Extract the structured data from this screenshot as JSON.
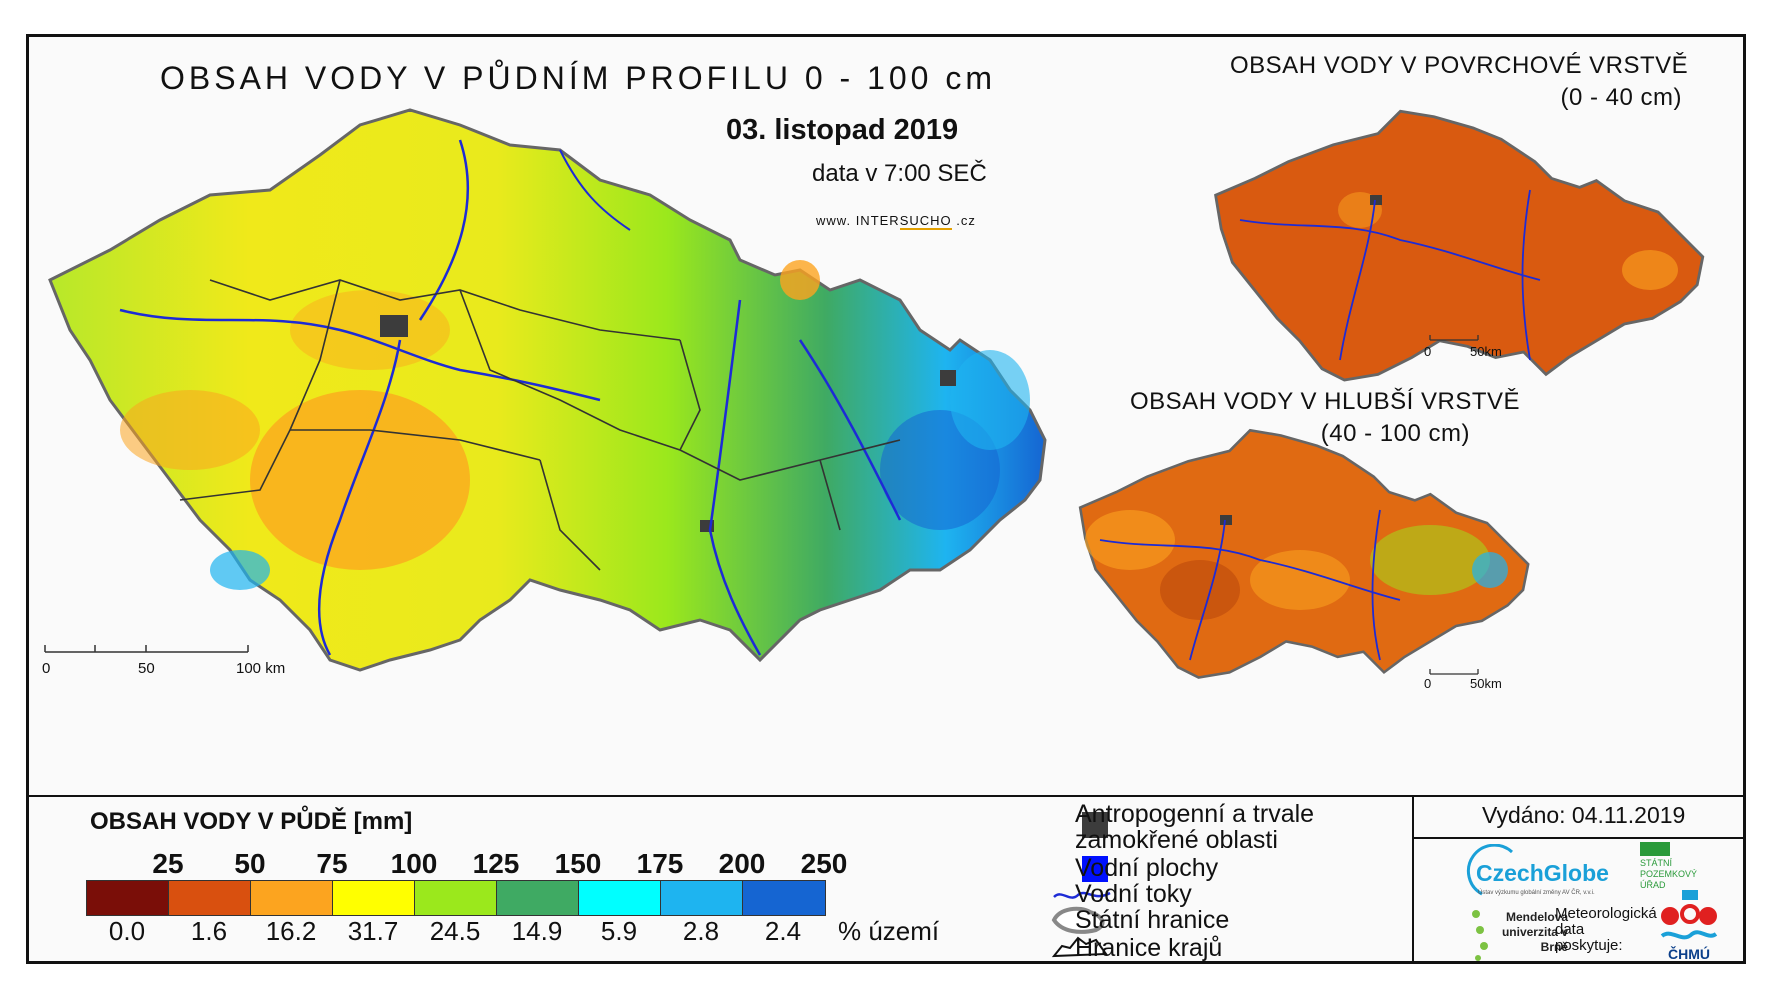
{
  "header": {
    "main_title": "OBSAH VODY V PŮDNÍM PROFILU 0 - 100 cm",
    "date": "03. listopad 2019",
    "data_time": "data v 7:00 SEČ",
    "website_prefix": "www.",
    "website_brand_a": "INTER",
    "website_brand_b": "SUCHO",
    "website_suffix": ".cz"
  },
  "inset_top": {
    "title": "OBSAH VODY V POVRCHOVÉ VRSTVĚ",
    "range": "(0 - 40 cm)",
    "scale_start": "0",
    "scale_end": "50km",
    "dominant_color": "#d95a10"
  },
  "inset_bottom": {
    "title": "OBSAH VODY V HLUBŠÍ VRSTVĚ",
    "range": "(40 - 100 cm)",
    "scale_start": "0",
    "scale_end": "50km",
    "dominant_color": "#e06a12"
  },
  "main_scale": {
    "labels": [
      "0",
      "50",
      "100 km"
    ]
  },
  "legend": {
    "title": "OBSAH VODY V PŮDĚ [mm]",
    "thresholds": [
      "25",
      "50",
      "75",
      "100",
      "125",
      "150",
      "175",
      "200",
      "250"
    ],
    "colors": [
      "#7a0e08",
      "#d9500f",
      "#fca41f",
      "#ffff00",
      "#9be81c",
      "#3faa63",
      "#00ffff",
      "#1eb4f0",
      "#1565d2"
    ],
    "percentages": [
      "0.0",
      "1.6",
      "16.2",
      "31.7",
      "24.5",
      "14.9",
      "5.9",
      "2.8",
      "2.4"
    ],
    "percent_unit": "% území"
  },
  "symbols": {
    "anthropogenic_line1": "Antropogenní a trvale",
    "anthropogenic_line2": "zamokřené oblasti",
    "anthropogenic_color": "#3c3c3c",
    "water_bodies": "Vodní plochy",
    "water_color": "#0010ff",
    "rivers": "Vodní toky",
    "river_color": "#1d2bd6",
    "state_border": "Státní hranice",
    "region_border": "Hranice krajů"
  },
  "issued": "Vydáno: 04.11.2019",
  "logos": {
    "czechglobe": "CzechGlobe",
    "czechglobe_sub": "Ústav výzkumu globální změny AV ČR, v.v.i.",
    "spu": "STÁTNÍ POZEMKOVÝ ÚŘAD",
    "mendel": "Mendelova univerzita v Brně",
    "met_data": "Meteorologická data poskytuje:",
    "chmu": "ČHMÚ"
  }
}
